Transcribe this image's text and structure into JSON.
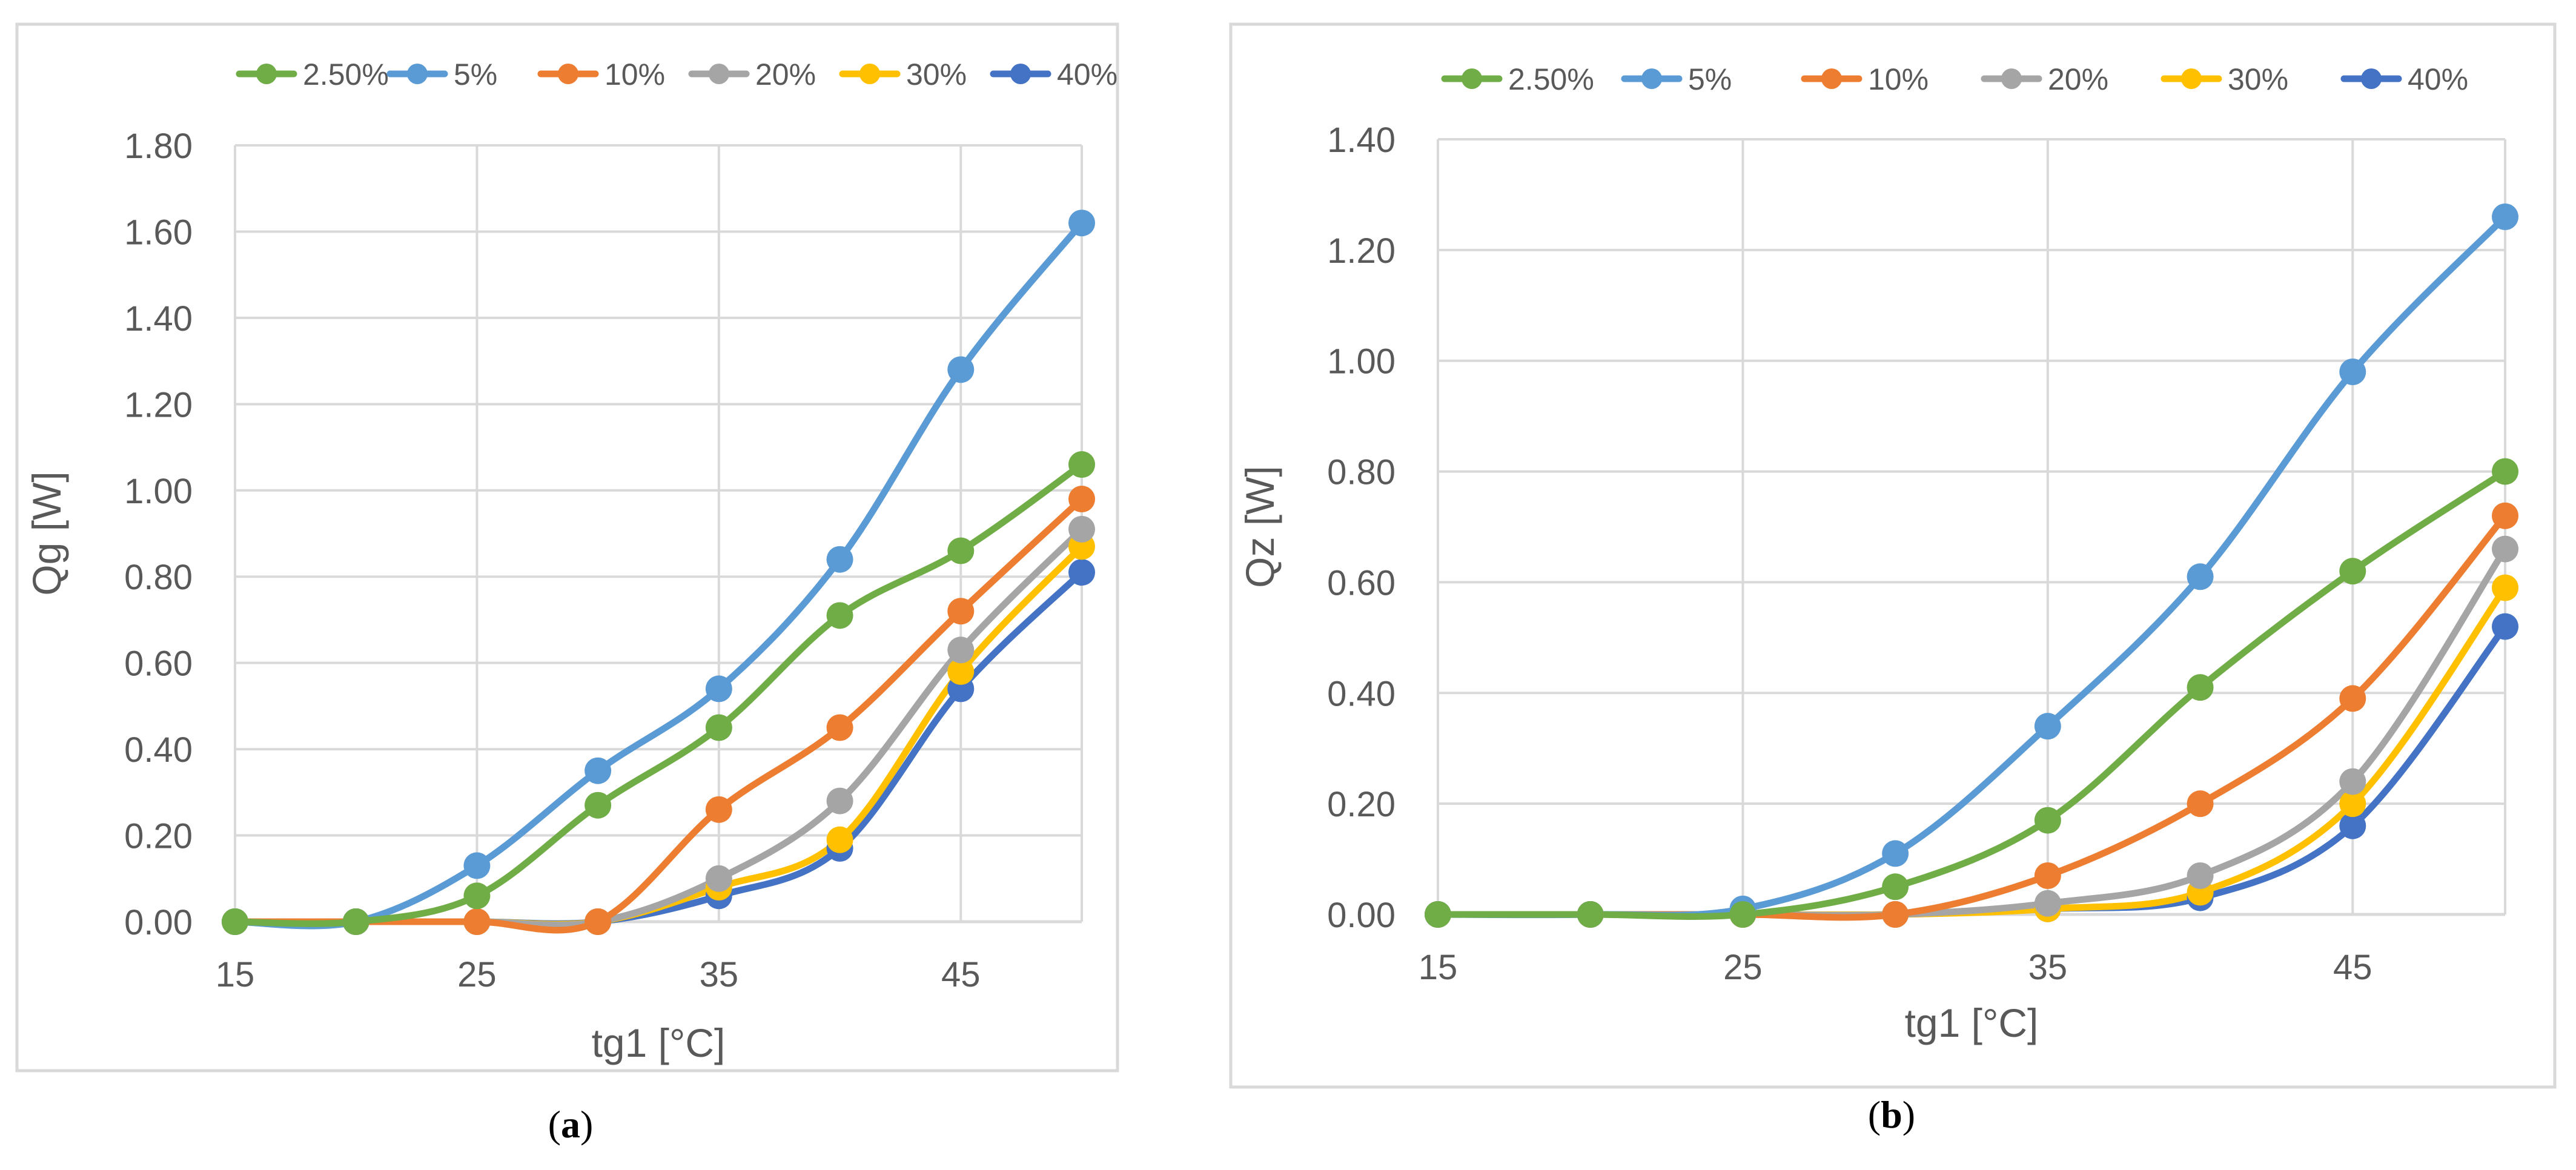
{
  "colors": {
    "s2_5": "#70ad47",
    "s5": "#5b9bd5",
    "s10": "#ed7d31",
    "s20": "#a5a5a5",
    "s30": "#ffc000",
    "s40": "#4472c4",
    "grid": "#d9d9d9",
    "frame": "#d9d9d9",
    "text": "#595959"
  },
  "chart_data": [
    {
      "type": "line",
      "panel_label": "a",
      "title": "",
      "xlabel": "tg1 [°C]",
      "ylabel": "Qg [W]",
      "x": [
        15,
        20,
        25,
        30,
        35,
        40,
        45,
        50
      ],
      "xlim": [
        15,
        50
      ],
      "xticks": [
        15,
        25,
        35,
        45
      ],
      "xtick_labels": [
        "15",
        "25",
        "35",
        "45"
      ],
      "ylim": [
        0,
        1.8
      ],
      "yticks": [
        0,
        0.2,
        0.4,
        0.6,
        0.8,
        1.0,
        1.2,
        1.4,
        1.6,
        1.8
      ],
      "ytick_labels": [
        "0.00",
        "0.20",
        "0.40",
        "0.60",
        "0.80",
        "1.00",
        "1.20",
        "1.40",
        "1.60",
        "1.80"
      ],
      "grid": true,
      "legend_position": "top",
      "series": [
        {
          "name": "2.50%",
          "color_key": "s2_5",
          "values": [
            0.0,
            0.0,
            0.06,
            0.27,
            0.45,
            0.71,
            0.86,
            1.06
          ]
        },
        {
          "name": "5%",
          "color_key": "s5",
          "values": [
            0.0,
            0.0,
            0.13,
            0.35,
            0.54,
            0.84,
            1.28,
            1.62
          ]
        },
        {
          "name": "10%",
          "color_key": "s10",
          "values": [
            0.0,
            0.0,
            0.0,
            0.0,
            0.26,
            0.45,
            0.72,
            0.98
          ]
        },
        {
          "name": "20%",
          "color_key": "s20",
          "values": [
            0.0,
            0.0,
            0.0,
            0.0,
            0.1,
            0.28,
            0.63,
            0.91
          ]
        },
        {
          "name": "30%",
          "color_key": "s30",
          "values": [
            0.0,
            0.0,
            0.0,
            0.0,
            0.08,
            0.19,
            0.58,
            0.87
          ]
        },
        {
          "name": "40%",
          "color_key": "s40",
          "values": [
            0.0,
            0.0,
            0.0,
            0.0,
            0.06,
            0.17,
            0.54,
            0.81
          ]
        }
      ]
    },
    {
      "type": "line",
      "panel_label": "b",
      "title": "",
      "xlabel": "tg1 [°C]",
      "ylabel": "Qz [W]",
      "x": [
        15,
        20,
        25,
        30,
        35,
        40,
        45,
        50
      ],
      "xlim": [
        15,
        50
      ],
      "xticks": [
        15,
        25,
        35,
        45
      ],
      "xtick_labels": [
        "15",
        "25",
        "35",
        "45"
      ],
      "ylim": [
        0,
        1.4
      ],
      "yticks": [
        0,
        0.2,
        0.4,
        0.6,
        0.8,
        1.0,
        1.2,
        1.4
      ],
      "ytick_labels": [
        "0.00",
        "0.20",
        "0.40",
        "0.60",
        "0.80",
        "1.00",
        "1.20",
        "1.40"
      ],
      "grid": true,
      "legend_position": "top",
      "series": [
        {
          "name": "2.50%",
          "color_key": "s2_5",
          "values": [
            0.0,
            0.0,
            0.0,
            0.05,
            0.17,
            0.41,
            0.62,
            0.8
          ]
        },
        {
          "name": "5%",
          "color_key": "s5",
          "values": [
            0.0,
            0.0,
            0.01,
            0.11,
            0.34,
            0.61,
            0.98,
            1.26
          ]
        },
        {
          "name": "10%",
          "color_key": "s10",
          "values": [
            0.0,
            0.0,
            0.0,
            0.0,
            0.07,
            0.2,
            0.39,
            0.72
          ]
        },
        {
          "name": "20%",
          "color_key": "s20",
          "values": [
            0.0,
            0.0,
            0.0,
            0.0,
            0.02,
            0.07,
            0.24,
            0.66
          ]
        },
        {
          "name": "30%",
          "color_key": "s30",
          "values": [
            0.0,
            0.0,
            0.0,
            0.0,
            0.01,
            0.04,
            0.2,
            0.59
          ]
        },
        {
          "name": "40%",
          "color_key": "s40",
          "values": [
            0.0,
            0.0,
            0.0,
            0.0,
            0.01,
            0.03,
            0.16,
            0.52
          ]
        }
      ]
    }
  ]
}
